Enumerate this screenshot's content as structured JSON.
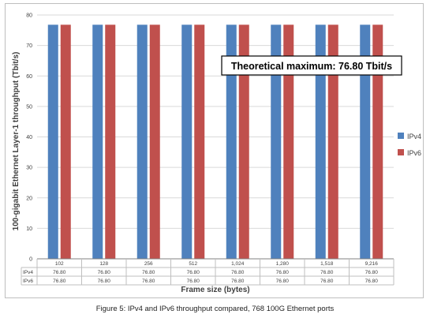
{
  "caption": "Figure 5: IPv4 and IPv6 throughput compared, 768 100G Ethernet ports",
  "chart_data": {
    "type": "bar",
    "categories": [
      "102",
      "128",
      "256",
      "512",
      "1,024",
      "1,280",
      "1,518",
      "9,216"
    ],
    "series": [
      {
        "name": "IPv4",
        "color": "#4f81bd",
        "values": [
          76.8,
          76.8,
          76.8,
          76.8,
          76.8,
          76.8,
          76.8,
          76.8
        ],
        "table_values": [
          "76.80",
          "76.80",
          "76.80",
          "76.80",
          "76.80",
          "76.80",
          "76.80",
          "76.80"
        ]
      },
      {
        "name": "IPv6",
        "color": "#c0504d",
        "values": [
          76.8,
          76.8,
          76.8,
          76.8,
          76.8,
          76.8,
          76.8,
          76.8
        ],
        "table_values": [
          "76.80",
          "76.80",
          "76.80",
          "76.80",
          "76.80",
          "76.80",
          "76.80",
          "76.80"
        ]
      }
    ],
    "xlabel": "Frame size (bytes)",
    "ylabel": "100-gigabit Ethernet Layer-1 throughput (Tbit/s)",
    "ylim": [
      0,
      80
    ],
    "yticks": [
      "0",
      "10",
      "20",
      "30",
      "40",
      "50",
      "60",
      "70",
      "80"
    ],
    "grid": true,
    "legend": "right",
    "data_table": true,
    "annotation": "Theoretical maximum: 76.80 Tbit/s"
  }
}
